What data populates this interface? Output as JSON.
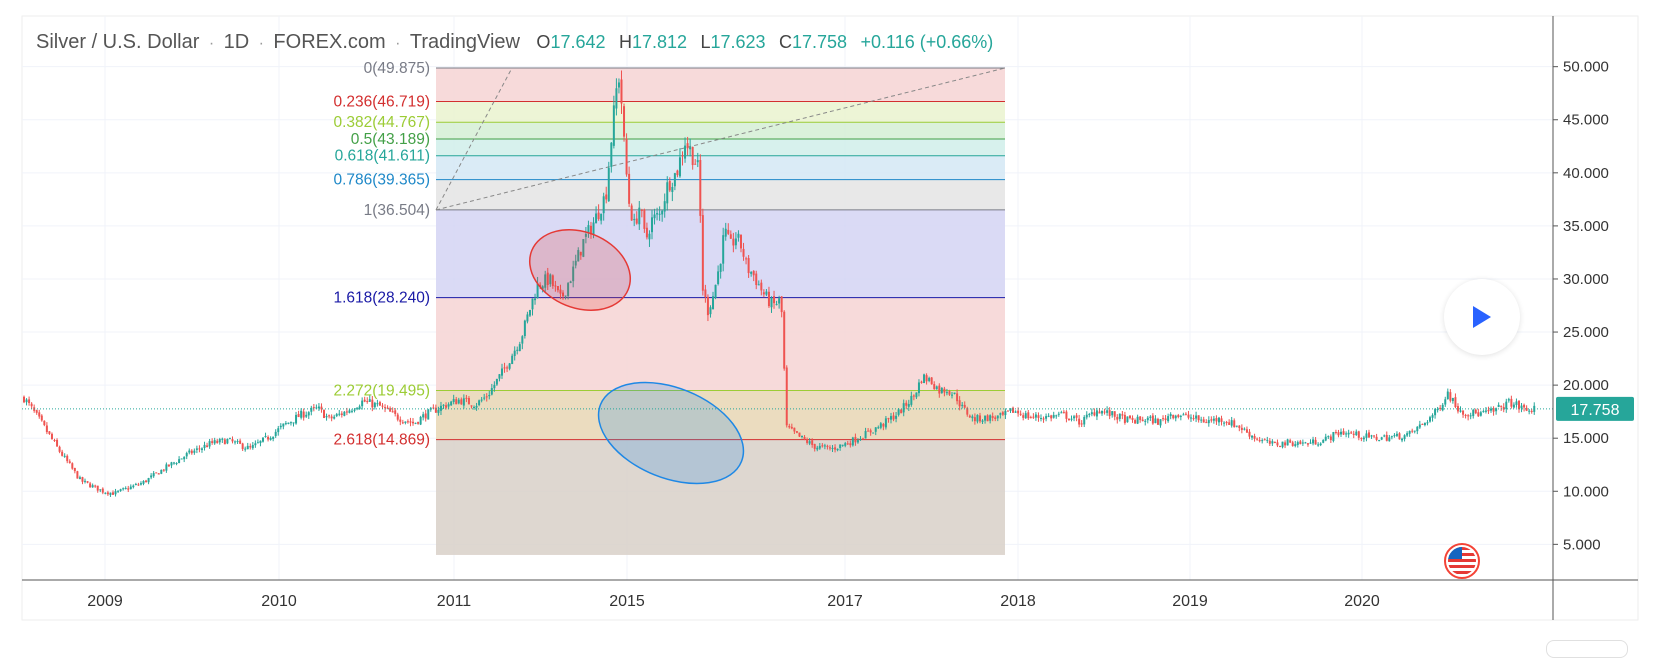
{
  "header": {
    "symbol": "Silver / U.S. Dollar",
    "interval": "1D",
    "exchange": "FOREX.com",
    "source": "TradingView",
    "ohlc": [
      {
        "key": "O",
        "value": "17.642"
      },
      {
        "key": "H",
        "value": "17.812"
      },
      {
        "key": "L",
        "value": "17.623"
      },
      {
        "key": "C",
        "value": "17.758"
      }
    ],
    "change": "+0.116 (+0.66%)"
  },
  "colors": {
    "up": "#26a69a",
    "down": "#ef5350",
    "price_line": "#26a69a",
    "fib_band_red": "#f6d3d3",
    "fib_band_purple": "#d4d4f3",
    "red_ellipse": "#e53935",
    "blue_ellipse": "#1e88e5"
  },
  "chart_data": {
    "type": "candlestick",
    "title": "Silver / U.S. Dollar",
    "ylim": [
      4,
      54
    ],
    "yticks": [
      "50.000",
      "45.000",
      "40.000",
      "35.000",
      "30.000",
      "25.000",
      "20.000",
      "15.000",
      "10.000",
      "5.000"
    ],
    "ytick_values": [
      50,
      45,
      40,
      35,
      30,
      25,
      20,
      15,
      10,
      5
    ],
    "xticks": [
      "2009",
      "2010",
      "2011",
      "2015",
      "2017",
      "2018",
      "2019",
      "2020"
    ],
    "last_price": "17.758",
    "last_price_value": 17.758,
    "price_path": [
      [
        0,
        18.8
      ],
      [
        0.3,
        16.5
      ],
      [
        0.6,
        14.0
      ],
      [
        1.0,
        11.0
      ],
      [
        1.2,
        10.5
      ],
      [
        1.4,
        10.0
      ],
      [
        1.6,
        9.8
      ],
      [
        1.8,
        10.2
      ],
      [
        2.1,
        10.8
      ],
      [
        2.5,
        12.2
      ],
      [
        2.9,
        13.5
      ],
      [
        3.3,
        14.5
      ],
      [
        3.6,
        14.8
      ],
      [
        4.0,
        14.0
      ],
      [
        4.3,
        15.0
      ],
      [
        4.6,
        16.2
      ],
      [
        4.9,
        17.2
      ],
      [
        5.2,
        17.8
      ],
      [
        5.4,
        16.8
      ],
      [
        5.7,
        17.5
      ],
      [
        6.0,
        18.5
      ],
      [
        6.3,
        18.0
      ],
      [
        6.6,
        17.0
      ],
      [
        6.9,
        16.4
      ],
      [
        7.1,
        17.2
      ],
      [
        7.4,
        18.0
      ],
      [
        7.7,
        18.6
      ],
      [
        8.0,
        18.2
      ],
      [
        8.2,
        19.0
      ],
      [
        8.5,
        21.5
      ],
      [
        8.8,
        24.5
      ],
      [
        9.0,
        28.0
      ],
      [
        9.1,
        29.5
      ],
      [
        9.3,
        30.0
      ],
      [
        9.5,
        28.0
      ],
      [
        9.7,
        30.5
      ],
      [
        9.9,
        33.5
      ],
      [
        10.1,
        35.5
      ],
      [
        10.3,
        38.0
      ],
      [
        10.4,
        43.5
      ],
      [
        10.5,
        48.5
      ],
      [
        10.55,
        49.4
      ],
      [
        10.6,
        44.0
      ],
      [
        10.7,
        37.5
      ],
      [
        10.8,
        35.0
      ],
      [
        10.9,
        37.0
      ],
      [
        11.0,
        33.5
      ],
      [
        11.1,
        35.5
      ],
      [
        11.25,
        36.0
      ],
      [
        11.4,
        39.0
      ],
      [
        11.55,
        40.0
      ],
      [
        11.7,
        43.0
      ],
      [
        11.85,
        41.5
      ],
      [
        11.95,
        40.0
      ],
      [
        12.0,
        29.5
      ],
      [
        12.1,
        27.0
      ],
      [
        12.2,
        28.5
      ],
      [
        12.3,
        31.0
      ],
      [
        12.4,
        34.5
      ],
      [
        12.5,
        33.0
      ],
      [
        12.6,
        34.0
      ],
      [
        12.7,
        33.0
      ],
      [
        12.8,
        31.0
      ],
      [
        12.9,
        30.5
      ],
      [
        13.0,
        29.5
      ],
      [
        13.1,
        28.5
      ],
      [
        13.25,
        27.5
      ],
      [
        13.4,
        28.0
      ],
      [
        13.5,
        16.0
      ],
      [
        13.7,
        15.2
      ],
      [
        14.0,
        14.2
      ],
      [
        14.3,
        14.0
      ],
      [
        14.6,
        14.6
      ],
      [
        14.9,
        15.4
      ],
      [
        15.2,
        16.3
      ],
      [
        15.5,
        17.5
      ],
      [
        15.75,
        19.0
      ],
      [
        15.9,
        20.8
      ],
      [
        16.05,
        20.4
      ],
      [
        16.2,
        19.5
      ],
      [
        16.35,
        19.6
      ],
      [
        16.5,
        18.9
      ],
      [
        16.6,
        17.9
      ],
      [
        16.8,
        16.8
      ],
      [
        17.0,
        16.9
      ],
      [
        17.3,
        17.0
      ],
      [
        17.5,
        17.6
      ],
      [
        17.8,
        17.0
      ],
      [
        18.1,
        17.0
      ],
      [
        18.4,
        17.2
      ],
      [
        18.7,
        16.5
      ],
      [
        19.0,
        17.7
      ],
      [
        19.3,
        17.1
      ],
      [
        19.6,
        16.6
      ],
      [
        19.9,
        16.8
      ],
      [
        20.1,
        16.5
      ],
      [
        20.3,
        17.3
      ],
      [
        20.6,
        17.0
      ],
      [
        20.9,
        16.6
      ],
      [
        21.2,
        16.8
      ],
      [
        21.5,
        16.1
      ],
      [
        21.8,
        15.0
      ],
      [
        22.1,
        14.4
      ],
      [
        22.4,
        14.6
      ],
      [
        22.7,
        14.5
      ],
      [
        23.0,
        14.8
      ],
      [
        23.3,
        15.6
      ],
      [
        23.6,
        15.3
      ],
      [
        23.9,
        15.0
      ],
      [
        24.2,
        15.1
      ],
      [
        24.5,
        15.3
      ],
      [
        24.75,
        16.3
      ],
      [
        25.0,
        17.5
      ],
      [
        25.2,
        19.3
      ],
      [
        25.35,
        18.0
      ],
      [
        25.5,
        17.4
      ],
      [
        25.8,
        17.3
      ],
      [
        26.0,
        17.5
      ],
      [
        26.3,
        18.4
      ],
      [
        26.45,
        18.0
      ],
      [
        26.6,
        17.6
      ],
      [
        26.75,
        17.76
      ]
    ],
    "fibonacci": {
      "levels": [
        {
          "label": "0(49.875)",
          "value": 49.875,
          "color": "#787b86"
        },
        {
          "label": "0.236(46.719)",
          "value": 46.719,
          "color": "#d32f2f"
        },
        {
          "label": "0.382(44.767)",
          "value": 44.767,
          "color": "#9ccc35"
        },
        {
          "label": "0.5(43.189)",
          "value": 43.189,
          "color": "#43a047"
        },
        {
          "label": "0.618(41.611)",
          "value": 41.611,
          "color": "#26a69a"
        },
        {
          "label": "0.786(39.365)",
          "value": 39.365,
          "color": "#1e88c8"
        },
        {
          "label": "1(36.504)",
          "value": 36.504,
          "color": "#787b86"
        },
        {
          "label": "1.618(28.240)",
          "value": 28.24,
          "color": "#1a1aa6"
        },
        {
          "label": "2.272(19.495)",
          "value": 19.495,
          "color": "#9ccc35"
        },
        {
          "label": "2.618(14.869)",
          "value": 14.869,
          "color": "#d32f2f"
        }
      ],
      "bands": [
        {
          "from": 49.875,
          "to": 46.719,
          "color": "#f6d3d3"
        },
        {
          "from": 46.719,
          "to": 44.767,
          "color": "#eaf3cf"
        },
        {
          "from": 44.767,
          "to": 43.189,
          "color": "#d5efd5"
        },
        {
          "from": 43.189,
          "to": 41.611,
          "color": "#d0efea"
        },
        {
          "from": 41.611,
          "to": 39.365,
          "color": "#d3e8f4"
        },
        {
          "from": 39.365,
          "to": 36.504,
          "color": "#e4e4e4"
        },
        {
          "from": 36.504,
          "to": 28.24,
          "color": "#d4d4f3"
        },
        {
          "from": 28.24,
          "to": 19.495,
          "color": "#f6d3d3"
        },
        {
          "from": 19.495,
          "to": 14.869,
          "color": "#e8d6b4"
        },
        {
          "from": 14.869,
          "to": 4.0,
          "color": "#d8d0c8"
        }
      ]
    }
  }
}
